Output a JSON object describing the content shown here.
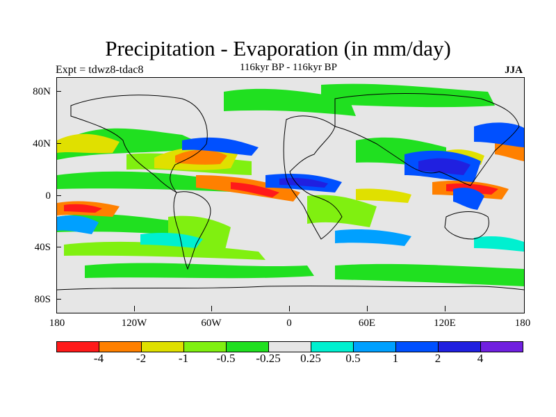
{
  "title": "Precipitation - Evaporation (in mm/day)",
  "subtitle": "116kyr BP - 116kyr BP",
  "left_label": "Expt = tdwz8-tdac8",
  "right_label": "JJA",
  "y_axis": {
    "labels": [
      "80N",
      "40N",
      "0",
      "40S",
      "80S"
    ]
  },
  "x_axis": {
    "labels": [
      "180",
      "120W",
      "60W",
      "0",
      "60E",
      "120E",
      "180"
    ]
  },
  "colorbar": {
    "colors": [
      "#ff1a1a",
      "#ff8000",
      "#e0e000",
      "#80f010",
      "#20e020",
      "#e6e6e6",
      "#00f0d0",
      "#00a0ff",
      "#0050ff",
      "#2020e0",
      "#7020e0"
    ],
    "labels": [
      "-4",
      "-2",
      "-1",
      "-0.5",
      "-0.25",
      "0.25",
      "0.5",
      "1",
      "2",
      "4"
    ]
  }
}
